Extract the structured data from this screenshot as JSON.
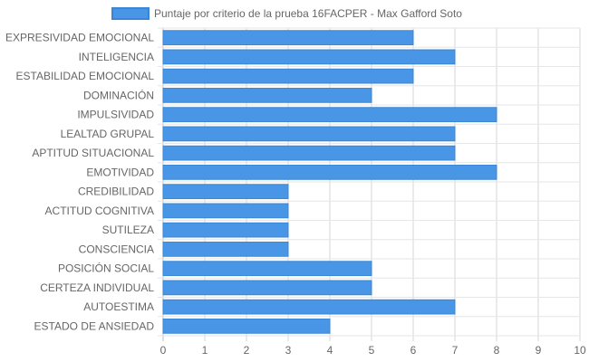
{
  "chart_data": {
    "type": "bar",
    "orientation": "horizontal",
    "categories": [
      "EXPRESIVIDAD EMOCIONAL",
      "INTELIGENCIA",
      "ESTABILIDAD EMOCIONAL",
      "DOMINACIÓN",
      "IMPULSIVIDAD",
      "LEALTAD GRUPAL",
      "APTITUD SITUACIONAL",
      "EMOTIVIDAD",
      "CREDIBILIDAD",
      "ACTITUD COGNITIVA",
      "SUTILEZA",
      "CONSCIENCIA",
      "POSICIÓN SOCIAL",
      "CERTEZA INDIVIDUAL",
      "AUTOESTIMA",
      "ESTADO DE ANSIEDAD"
    ],
    "series": [
      {
        "name": "Puntaje por criterio de la prueba 16FACPER - Max Gafford Soto",
        "values": [
          6,
          7,
          6,
          5,
          8,
          7,
          7,
          8,
          3,
          3,
          3,
          3,
          5,
          5,
          7,
          4
        ],
        "color": "#4a96e6",
        "border_color": "#3a86d6"
      }
    ],
    "xlim": [
      0,
      10
    ],
    "x_ticks": [
      "0",
      "1",
      "2",
      "3",
      "4",
      "5",
      "6",
      "7",
      "8",
      "9",
      "10"
    ],
    "grid": true,
    "legend_position": "top-center",
    "title": "",
    "xlabel": "",
    "ylabel": ""
  }
}
